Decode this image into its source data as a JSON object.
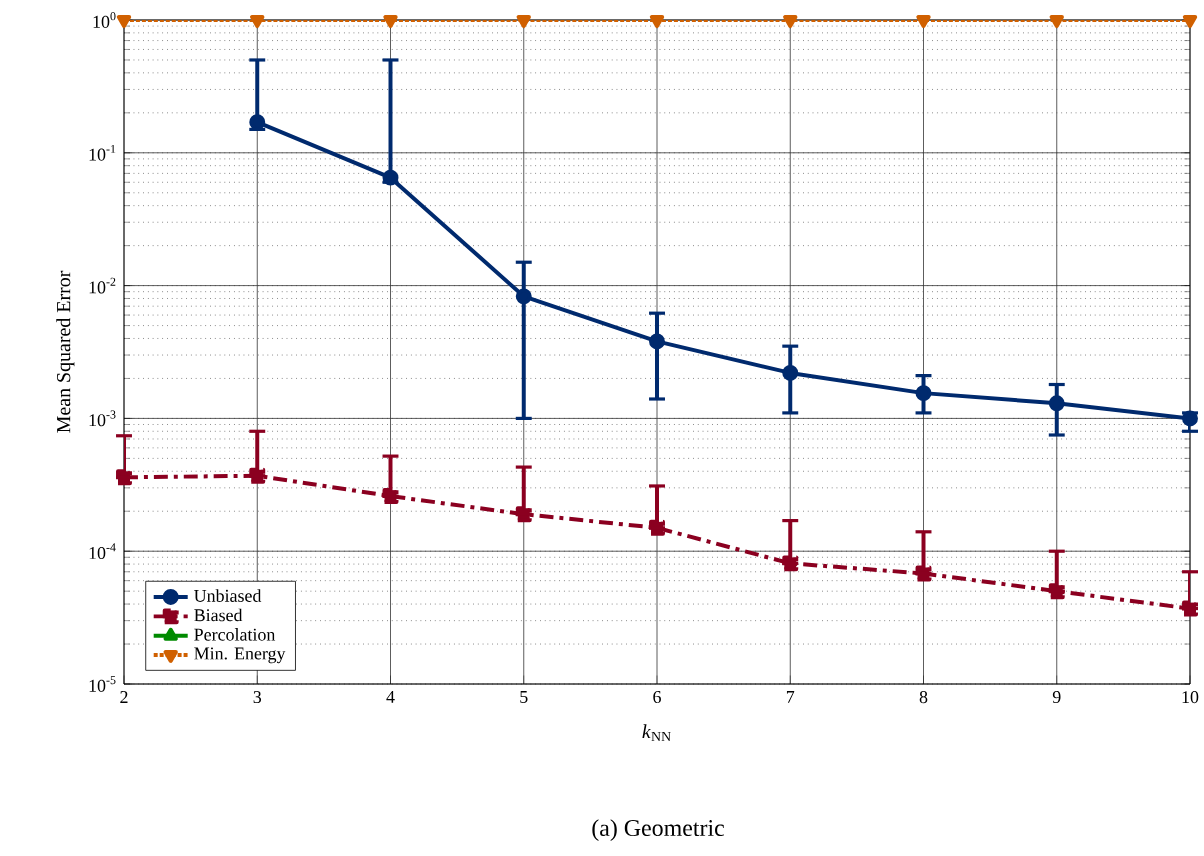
{
  "chart_data": {
    "type": "line",
    "xlabel": "*k*$_{NN}$",
    "ylabel": "Mean Squared Error",
    "annotations": [
      "(a) Geometric"
    ],
    "x": [
      2,
      3,
      4,
      5,
      6,
      7,
      8,
      9,
      10
    ],
    "xlim": [
      2,
      10
    ],
    "xticks": [
      2,
      3,
      4,
      5,
      6,
      7,
      8,
      9,
      10
    ],
    "ylim": [
      1e-05,
      1
    ],
    "log": "y",
    "yticks": [
      {
        "value": 1e-05,
        "label": "10$^{-5}$"
      },
      {
        "value": 0.0001,
        "label": "10$^{-4}$"
      },
      {
        "value": 0.001,
        "label": "10$^{-3}$"
      },
      {
        "value": 0.01,
        "label": "10$^{-2}$"
      },
      {
        "value": 0.1,
        "label": "10$^{-1}$"
      },
      {
        "value": 1,
        "label": "10$^{0}$"
      }
    ],
    "grid": true,
    "legend": "bottom left",
    "series": [
      {
        "name": "Unbiased",
        "color": "#002a6e",
        "marker": "circle",
        "line_style": "solid",
        "values": [
          null,
          0.17,
          0.065,
          0.0083,
          0.0038,
          0.0022,
          0.00155,
          0.0013,
          0.001
        ],
        "errors": [
          null,
          [
            0.15,
            0.5
          ],
          [
            0.06,
            0.5
          ],
          [
            0.001,
            0.015
          ],
          [
            0.0014,
            0.0062
          ],
          [
            0.0011,
            0.0035
          ],
          [
            0.0011,
            0.0021
          ],
          [
            0.00075,
            0.0018
          ],
          [
            0.0008,
            0.0011
          ]
        ]
      },
      {
        "name": "Biased",
        "color": "#8b0020",
        "marker": "square",
        "line_style": "dashed",
        "values": [
          0.00036,
          0.00037,
          0.00026,
          0.00019,
          0.00015,
          8.1e-05,
          6.8e-05,
          5e-05,
          3.7e-05
        ],
        "errors": [
          [
            0.00036,
            0.00074
          ],
          [
            0.00037,
            0.0008
          ],
          [
            0.00026,
            0.00052
          ],
          [
            0.00019,
            0.00043
          ],
          [
            0.00015,
            0.00031
          ],
          [
            8.1e-05,
            0.00017
          ],
          [
            6.8e-05,
            0.00014
          ],
          [
            5e-05,
            0.0001
          ],
          [
            3.7e-05,
            7e-05
          ]
        ]
      },
      {
        "name": "Percolation",
        "color": "#008a00",
        "marker": "triangle",
        "line_style": "solid",
        "values": [
          null,
          null,
          null,
          null,
          null,
          null,
          null,
          null,
          null
        ]
      },
      {
        "name": "Min. Energy",
        "color": "#d06000",
        "marker": "triangle_down",
        "line_style": "dotted",
        "values": [
          1,
          1,
          1,
          1,
          1,
          1,
          1,
          1,
          1
        ]
      }
    ]
  }
}
